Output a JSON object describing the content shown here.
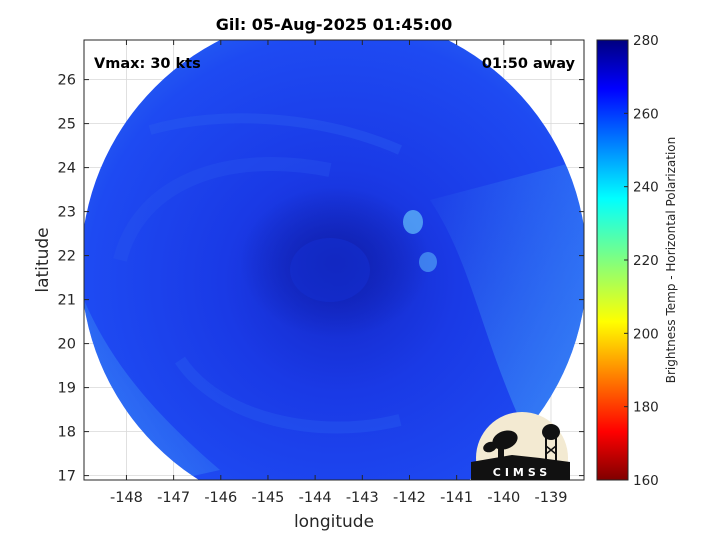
{
  "title": "Gil: 05-Aug-2025 01:45:00",
  "vmax_label": "Vmax: 30 kts",
  "away_label": "01:50 away",
  "xlabel": "longitude",
  "ylabel": "latitude",
  "x_ticks": [
    "-148",
    "-147",
    "-146",
    "-145",
    "-144",
    "-143",
    "-142",
    "-141",
    "-140",
    "-139"
  ],
  "x_tick_values": [
    -148,
    -147,
    -146,
    -145,
    -144,
    -143,
    -142,
    -141,
    -140,
    -139
  ],
  "y_ticks": [
    "17",
    "18",
    "19",
    "20",
    "21",
    "22",
    "23",
    "24",
    "25",
    "26"
  ],
  "y_tick_values": [
    17,
    18,
    19,
    20,
    21,
    22,
    23,
    24,
    25,
    26
  ],
  "xlim": [
    -148.9,
    -138.3
  ],
  "ylim": [
    16.9,
    26.9
  ],
  "colorbar": {
    "label": "Brightness Temp - Horizontal Polarization",
    "ticks": [
      "280",
      "260",
      "240",
      "220",
      "200",
      "180",
      "160"
    ],
    "range": [
      160,
      280
    ],
    "colormap": "jet"
  },
  "logo_text": "CIMSS",
  "colors": {
    "swath_base": "#1a3ff0",
    "swath_dark": "#1020b0",
    "swath_light": "#3d8ff5",
    "grid": "#d9d9d9"
  }
}
